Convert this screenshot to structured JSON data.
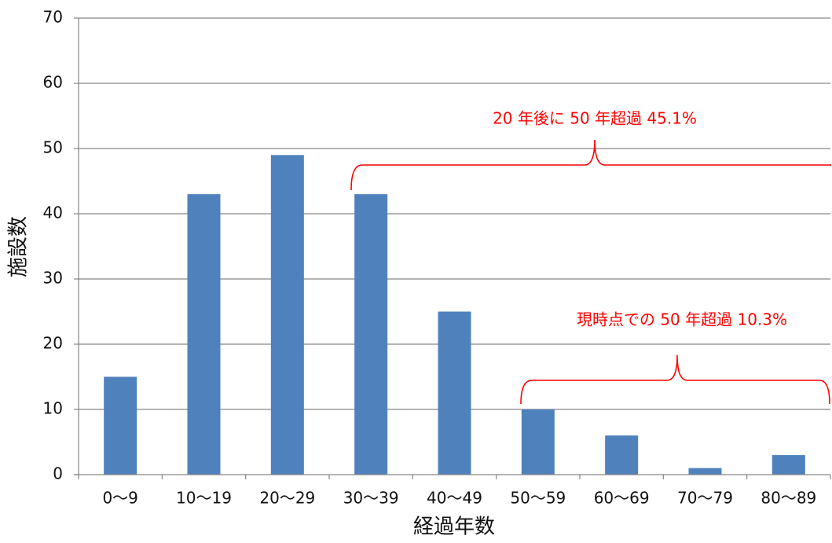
{
  "chart_data": {
    "type": "bar",
    "categories": [
      "0〜9",
      "10〜19",
      "20〜29",
      "30〜39",
      "40〜49",
      "50〜59",
      "60〜69",
      "70〜79",
      "80〜89"
    ],
    "values": [
      15,
      43,
      49,
      43,
      25,
      10,
      6,
      1,
      3
    ],
    "xlabel": "経過年数",
    "ylabel": "施設数",
    "ylim": [
      0,
      70
    ],
    "yticks": [
      0,
      10,
      20,
      30,
      40,
      50,
      60,
      70
    ],
    "grid": true,
    "annotations": [
      {
        "text": "20 年後に 50 年超過 45.1%"
      },
      {
        "text": "現時点での 50 年超過 10.3%"
      }
    ]
  },
  "colors": {
    "bar": "#4F81BD",
    "grid": "#868686",
    "annotation": "#FF0000"
  }
}
